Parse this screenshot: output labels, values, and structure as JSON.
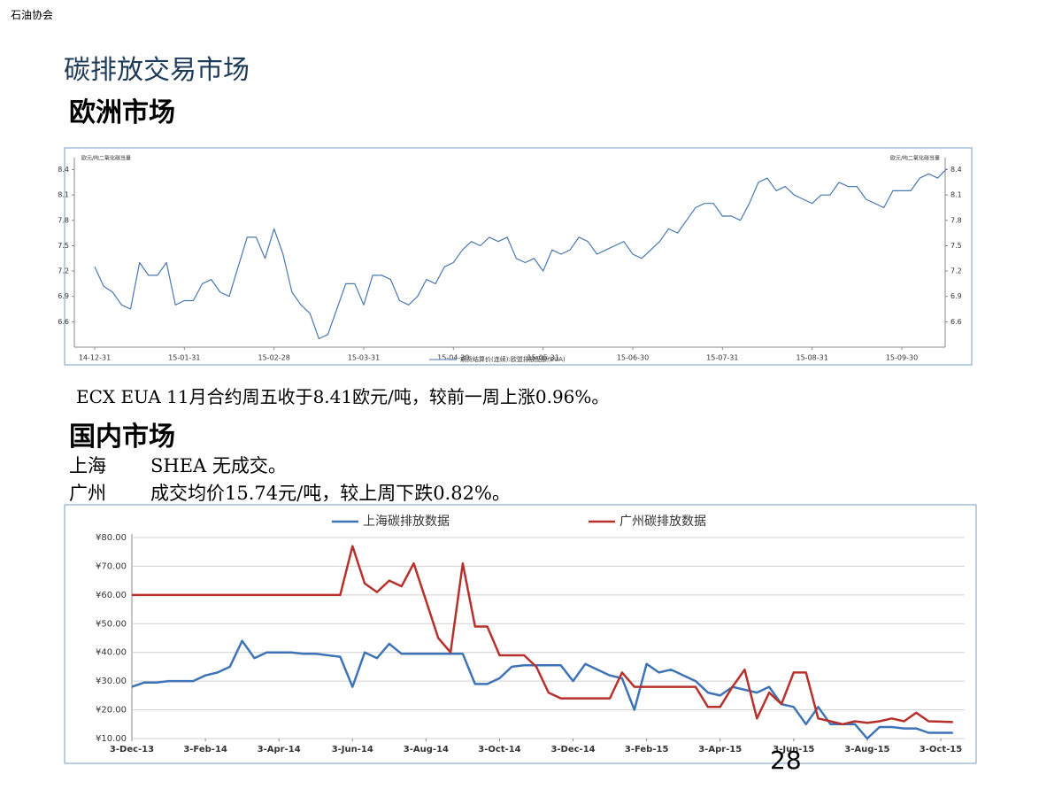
{
  "header": {
    "org": "石油协会"
  },
  "title": "碳排放交易市场",
  "section1": "欧洲市场",
  "note1": "ECX EUA 11月合约周五收于8.41欧元/吨，较前一周上涨0.96%。",
  "section2": "国内市场",
  "rows": [
    [
      "上海",
      "SHEA 无成交。"
    ],
    [
      "广州",
      "成交均价15.74元/吨，较上周下跌0.82%。"
    ]
  ],
  "page_number": "28",
  "chart_data": [
    {
      "type": "line",
      "ylabel": "欧元/吨二氧化碳当量",
      "y2label": "欧元/吨二氧化碳当量",
      "categories": [
        "14-12-31",
        null,
        null,
        null,
        null,
        null,
        null,
        null,
        null,
        null,
        "15-01-31",
        null,
        null,
        null,
        null,
        null,
        null,
        null,
        null,
        null,
        "15-02-28",
        null,
        null,
        null,
        null,
        null,
        null,
        null,
        null,
        null,
        "15-03-31",
        null,
        null,
        null,
        null,
        null,
        null,
        null,
        null,
        null,
        "15-04-30",
        null,
        null,
        null,
        null,
        null,
        null,
        null,
        null,
        null,
        "15-05-31",
        null,
        null,
        null,
        null,
        null,
        null,
        null,
        null,
        null,
        "15-06-30",
        null,
        null,
        null,
        null,
        null,
        null,
        null,
        null,
        null,
        "15-07-31",
        null,
        null,
        null,
        null,
        null,
        null,
        null,
        null,
        null,
        "15-08-31",
        null,
        null,
        null,
        null,
        null,
        null,
        null,
        null,
        null,
        "15-09-30",
        null,
        null,
        null,
        null,
        null
      ],
      "series": [
        {
          "name": "期货结算价(连续):欧盟排放配额(EUA)",
          "color": "#4a78b0",
          "values": [
            7.25,
            7.02,
            6.95,
            6.8,
            6.75,
            7.3,
            7.15,
            7.15,
            7.3,
            6.8,
            6.85,
            6.85,
            7.05,
            7.1,
            6.95,
            6.9,
            7.25,
            7.6,
            7.6,
            7.35,
            7.7,
            7.4,
            6.95,
            6.8,
            6.7,
            6.4,
            6.45,
            6.75,
            7.05,
            7.05,
            6.8,
            7.15,
            7.15,
            7.1,
            6.85,
            6.8,
            6.9,
            7.1,
            7.05,
            7.25,
            7.3,
            7.45,
            7.55,
            7.5,
            7.6,
            7.55,
            7.6,
            7.35,
            7.3,
            7.35,
            7.2,
            7.45,
            7.4,
            7.45,
            7.6,
            7.55,
            7.4,
            7.45,
            7.5,
            7.55,
            7.4,
            7.35,
            7.45,
            7.55,
            7.7,
            7.65,
            7.8,
            7.95,
            8.0,
            8.0,
            7.85,
            7.85,
            7.8,
            8.0,
            8.25,
            8.3,
            8.15,
            8.2,
            8.1,
            8.05,
            8.0,
            8.1,
            8.1,
            8.25,
            8.2,
            8.2,
            8.05,
            8.0,
            7.95,
            8.15,
            8.15,
            8.15,
            8.3,
            8.35,
            8.3,
            8.41
          ]
        }
      ],
      "ylim": [
        6.3,
        8.5
      ],
      "yticks": [
        6.6,
        6.9,
        7.2,
        7.5,
        7.8,
        8.1,
        8.4
      ],
      "y2lim": [
        6.3,
        8.5
      ],
      "y2ticks": [
        6.6,
        6.9,
        7.2,
        7.5,
        7.8,
        8.1,
        8.4
      ],
      "grid": false,
      "legend": "bottom"
    },
    {
      "type": "line",
      "categories": [
        "3-Dec-13",
        null,
        null,
        null,
        null,
        null,
        "3-Feb-14",
        null,
        null,
        null,
        null,
        null,
        "3-Apr-14",
        null,
        null,
        null,
        null,
        null,
        "3-Jun-14",
        null,
        null,
        null,
        null,
        null,
        "3-Aug-14",
        null,
        null,
        null,
        null,
        null,
        "3-Oct-14",
        null,
        null,
        null,
        null,
        null,
        "3-Dec-14",
        null,
        null,
        null,
        null,
        null,
        "3-Feb-15",
        null,
        null,
        null,
        null,
        null,
        "3-Apr-15",
        null,
        null,
        null,
        null,
        null,
        "3-Jun-15",
        null,
        null,
        null,
        null,
        null,
        "3-Aug-15",
        null,
        null,
        null,
        null,
        null,
        "3-Oct-15",
        null
      ],
      "series": [
        {
          "name": "上海碳排放数据",
          "color": "#3e74b6",
          "values": [
            28,
            29.5,
            29.5,
            30,
            30,
            30,
            32,
            33,
            35,
            44,
            38,
            40,
            40,
            40,
            39.5,
            39.5,
            39,
            38.5,
            28,
            40,
            38,
            43,
            39.5,
            39.5,
            39.5,
            39.5,
            39.5,
            39.5,
            29,
            29,
            31,
            35,
            35.5,
            35.5,
            35.5,
            35.5,
            30,
            36,
            34,
            32,
            31,
            20,
            36,
            33,
            34,
            32,
            30,
            26,
            25,
            28,
            27,
            26,
            28,
            22,
            21,
            15,
            21,
            15,
            15,
            15,
            10,
            14,
            14,
            13.5,
            13.5,
            12,
            12,
            12
          ]
        },
        {
          "name": "广州碳排放数据",
          "color": "#b7312c",
          "values": [
            60,
            60,
            60,
            60,
            60,
            60,
            60,
            60,
            60,
            60,
            60,
            60,
            60,
            60,
            60,
            60,
            60,
            60,
            77,
            64,
            61,
            65,
            63,
            71,
            58,
            45,
            40,
            71,
            49,
            49,
            39,
            39,
            39,
            35,
            26,
            24,
            24,
            24,
            24,
            24,
            33,
            28,
            28,
            28,
            28,
            28,
            28,
            21,
            21,
            28,
            34,
            17,
            26,
            22,
            33,
            33,
            17,
            16,
            15,
            16,
            15.5,
            16,
            17,
            16,
            19,
            16,
            15.9,
            15.74
          ]
        }
      ],
      "ylim": [
        10,
        80
      ],
      "yticks": [
        {
          "value": 10,
          "label": "¥10.00"
        },
        {
          "value": 20,
          "label": "¥20.00"
        },
        {
          "value": 30,
          "label": "¥30.00"
        },
        {
          "value": 40,
          "label": "¥40.00"
        },
        {
          "value": 50,
          "label": "¥50.00"
        },
        {
          "value": 60,
          "label": "¥60.00"
        },
        {
          "value": 70,
          "label": "¥70.00"
        },
        {
          "value": 80,
          "label": "¥80.00"
        }
      ],
      "grid": true,
      "legend": "top"
    }
  ]
}
